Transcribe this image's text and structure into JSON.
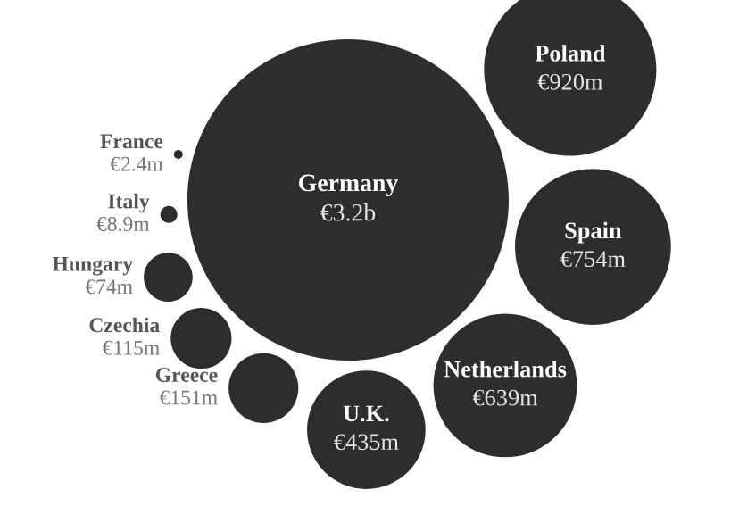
{
  "chart_data": {
    "type": "other",
    "categories": [
      "France",
      "Italy",
      "Hungary",
      "Czechia",
      "Greece",
      "U.K.",
      "Netherlands",
      "Spain",
      "Poland",
      "Germany"
    ],
    "values": [
      2400000,
      8900000,
      74000000,
      115000000,
      151000000,
      435000000,
      639000000,
      754000000,
      920000000,
      3200000000
    ],
    "value_labels": [
      "€2.4m",
      "€8.9m",
      "€74m",
      "€115m",
      "€151m",
      "€435m",
      "€639m",
      "€754m",
      "€920m",
      "€3.2b"
    ],
    "color": "#2b2d2f"
  }
}
